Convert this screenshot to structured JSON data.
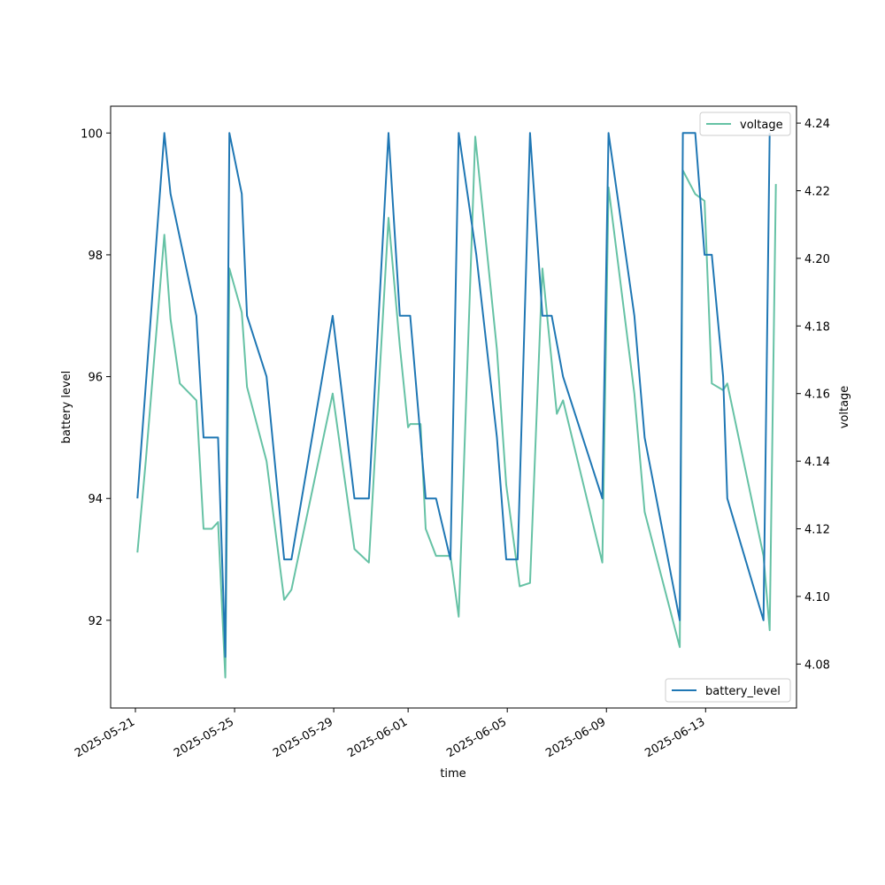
{
  "chart_data": {
    "type": "line",
    "xlabel": "time",
    "ylabel_left": "battery level",
    "ylabel_right": "voltage",
    "x_range": [
      "2025-05-20T00:00",
      "2025-06-16T16:00"
    ],
    "x_ticks": [
      "2025-05-21",
      "2025-05-25",
      "2025-05-29",
      "2025-06-01",
      "2025-06-05",
      "2025-06-09",
      "2025-06-13"
    ],
    "ylim_left": [
      90.56,
      100.44
    ],
    "yticks_left": [
      92,
      94,
      96,
      98,
      100
    ],
    "ylim_right": [
      4.067,
      4.245
    ],
    "yticks_right": [
      4.08,
      4.1,
      4.12,
      4.14,
      4.16,
      4.18,
      4.2,
      4.22,
      4.24
    ],
    "ytick_labels_right": [
      "4.08",
      "4.10",
      "4.12",
      "4.14",
      "4.16",
      "4.18",
      "4.20",
      "4.22",
      "4.24"
    ],
    "grid": false,
    "series": [
      {
        "name": "battery_level",
        "axis": "left",
        "color": "#1f77b4",
        "legend_position": "lower right",
        "x": [
          "2025-05-21T02:00",
          "2025-05-22T04:00",
          "2025-05-22T10:00",
          "2025-05-23T11:00",
          "2025-05-23T18:00",
          "2025-05-24T08:00",
          "2025-05-24T15:00",
          "2025-05-24T19:00",
          "2025-05-25T07:00",
          "2025-05-25T12:00",
          "2025-05-26T07:00",
          "2025-05-27T00:00",
          "2025-05-27T07:00",
          "2025-05-28T23:00",
          "2025-05-29T20:00",
          "2025-05-30T10:00",
          "2025-05-31T05:00",
          "2025-05-31T16:00",
          "2025-06-01T02:00",
          "2025-06-01T17:00",
          "2025-06-02T03:00",
          "2025-06-02T17:00",
          "2025-06-03T01:00",
          "2025-06-03T18:00",
          "2025-06-04T14:00",
          "2025-06-04T23:00",
          "2025-06-05T10:00",
          "2025-06-05T22:00",
          "2025-06-06T10:00",
          "2025-06-06T19:00",
          "2025-06-07T06:00",
          "2025-06-08T20:00",
          "2025-06-09T02:00",
          "2025-06-10T03:00",
          "2025-06-10T13:00",
          "2025-06-11T23:00",
          "2025-06-12T02:00",
          "2025-06-12T14:00",
          "2025-06-12T23:00",
          "2025-06-13T06:00",
          "2025-06-13T17:00",
          "2025-06-13T21:00",
          "2025-06-15T08:00",
          "2025-06-15T14:00"
        ],
        "values": [
          94,
          100,
          99,
          97,
          95,
          95,
          91.4,
          100,
          99,
          97,
          96,
          93,
          93,
          97,
          94,
          94,
          100,
          97,
          97,
          94,
          94,
          93,
          100,
          98,
          95,
          93,
          93,
          100,
          97,
          97,
          96,
          94,
          100,
          97,
          95,
          92,
          100,
          100,
          98,
          98,
          96,
          94,
          92,
          100
        ]
      },
      {
        "name": "voltage",
        "axis": "right",
        "color": "#66c2a5",
        "legend_position": "upper right",
        "x": [
          "2025-05-21T02:00",
          "2025-05-21T10:00",
          "2025-05-22T04:00",
          "2025-05-22T10:00",
          "2025-05-22T19:00",
          "2025-05-23T11:00",
          "2025-05-23T18:00",
          "2025-05-24T02:00",
          "2025-05-24T08:00",
          "2025-05-24T15:00",
          "2025-05-24T19:00",
          "2025-05-25T07:00",
          "2025-05-25T12:00",
          "2025-05-26T07:00",
          "2025-05-27T00:00",
          "2025-05-27T07:00",
          "2025-05-28T23:00",
          "2025-05-29T20:00",
          "2025-05-30T10:00",
          "2025-05-31T05:00",
          "2025-05-31T16:00",
          "2025-06-01T00:00",
          "2025-06-01T02:00",
          "2025-06-01T12:00",
          "2025-06-01T17:00",
          "2025-06-02T03:00",
          "2025-06-02T17:00",
          "2025-06-03T01:00",
          "2025-06-03T17:00",
          "2025-06-04T14:00",
          "2025-06-04T23:00",
          "2025-06-05T12:00",
          "2025-06-05T22:00",
          "2025-06-06T10:00",
          "2025-06-07T00:00",
          "2025-06-07T06:00",
          "2025-06-08T20:00",
          "2025-06-09T02:00",
          "2025-06-10T03:00",
          "2025-06-10T13:00",
          "2025-06-11T23:00",
          "2025-06-12T02:00",
          "2025-06-12T14:00",
          "2025-06-12T23:00",
          "2025-06-13T06:00",
          "2025-06-13T17:00",
          "2025-06-13T21:00",
          "2025-06-15T08:00",
          "2025-06-15T14:00",
          "2025-06-15T20:00"
        ],
        "values": [
          4.113,
          4.14,
          4.207,
          4.182,
          4.163,
          4.158,
          4.12,
          4.12,
          4.122,
          4.076,
          4.197,
          4.184,
          4.162,
          4.14,
          4.099,
          4.102,
          4.16,
          4.114,
          4.11,
          4.212,
          4.174,
          4.15,
          4.151,
          4.151,
          4.12,
          4.112,
          4.112,
          4.094,
          4.236,
          4.173,
          4.133,
          4.103,
          4.104,
          4.197,
          4.154,
          4.158,
          4.11,
          4.221,
          4.16,
          4.125,
          4.085,
          4.226,
          4.219,
          4.217,
          4.163,
          4.161,
          4.163,
          4.112,
          4.09,
          4.222
        ]
      }
    ]
  }
}
